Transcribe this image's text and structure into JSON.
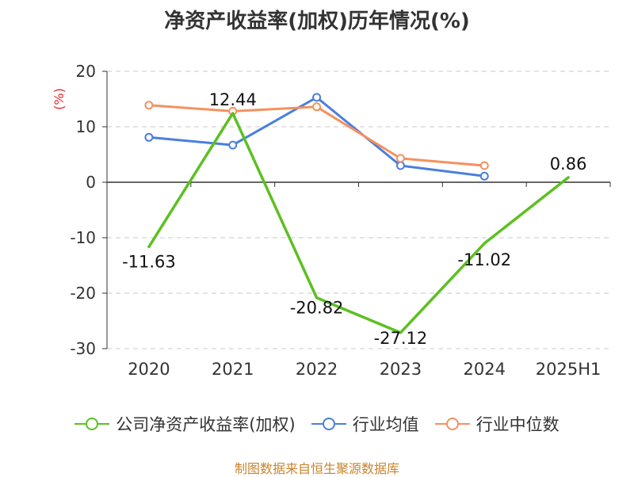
{
  "title": "净资产收益率(加权)历年情况(%)",
  "source": "制图数据来自恒生聚源数据库",
  "chart_data": {
    "type": "line",
    "title": "净资产收益率(加权)历年情况(%)",
    "ylabel": "(%)",
    "xlabel": "",
    "categories": [
      "2020",
      "2021",
      "2022",
      "2023",
      "2024",
      "2025H1"
    ],
    "ylim": [
      -30,
      20
    ],
    "yticks": [
      20,
      10,
      0,
      -10,
      -20,
      -30
    ],
    "grid": true,
    "legend_position": "bottom",
    "series": [
      {
        "name": "公司净资产收益率(加权)",
        "color": "#5cc021",
        "values": [
          -11.63,
          12.44,
          -20.82,
          -27.12,
          -11.02,
          0.86
        ],
        "labels": [
          "-11.63",
          "12.44",
          "-20.82",
          "-27.12",
          "-11.02",
          "0.86"
        ]
      },
      {
        "name": "行业均值",
        "color": "#4a7fdc",
        "values": [
          8.1,
          6.7,
          15.3,
          3.0,
          1.1,
          null
        ]
      },
      {
        "name": "行业中位数",
        "color": "#f5915e",
        "values": [
          13.9,
          12.8,
          13.6,
          4.3,
          3.0,
          null
        ]
      }
    ]
  }
}
